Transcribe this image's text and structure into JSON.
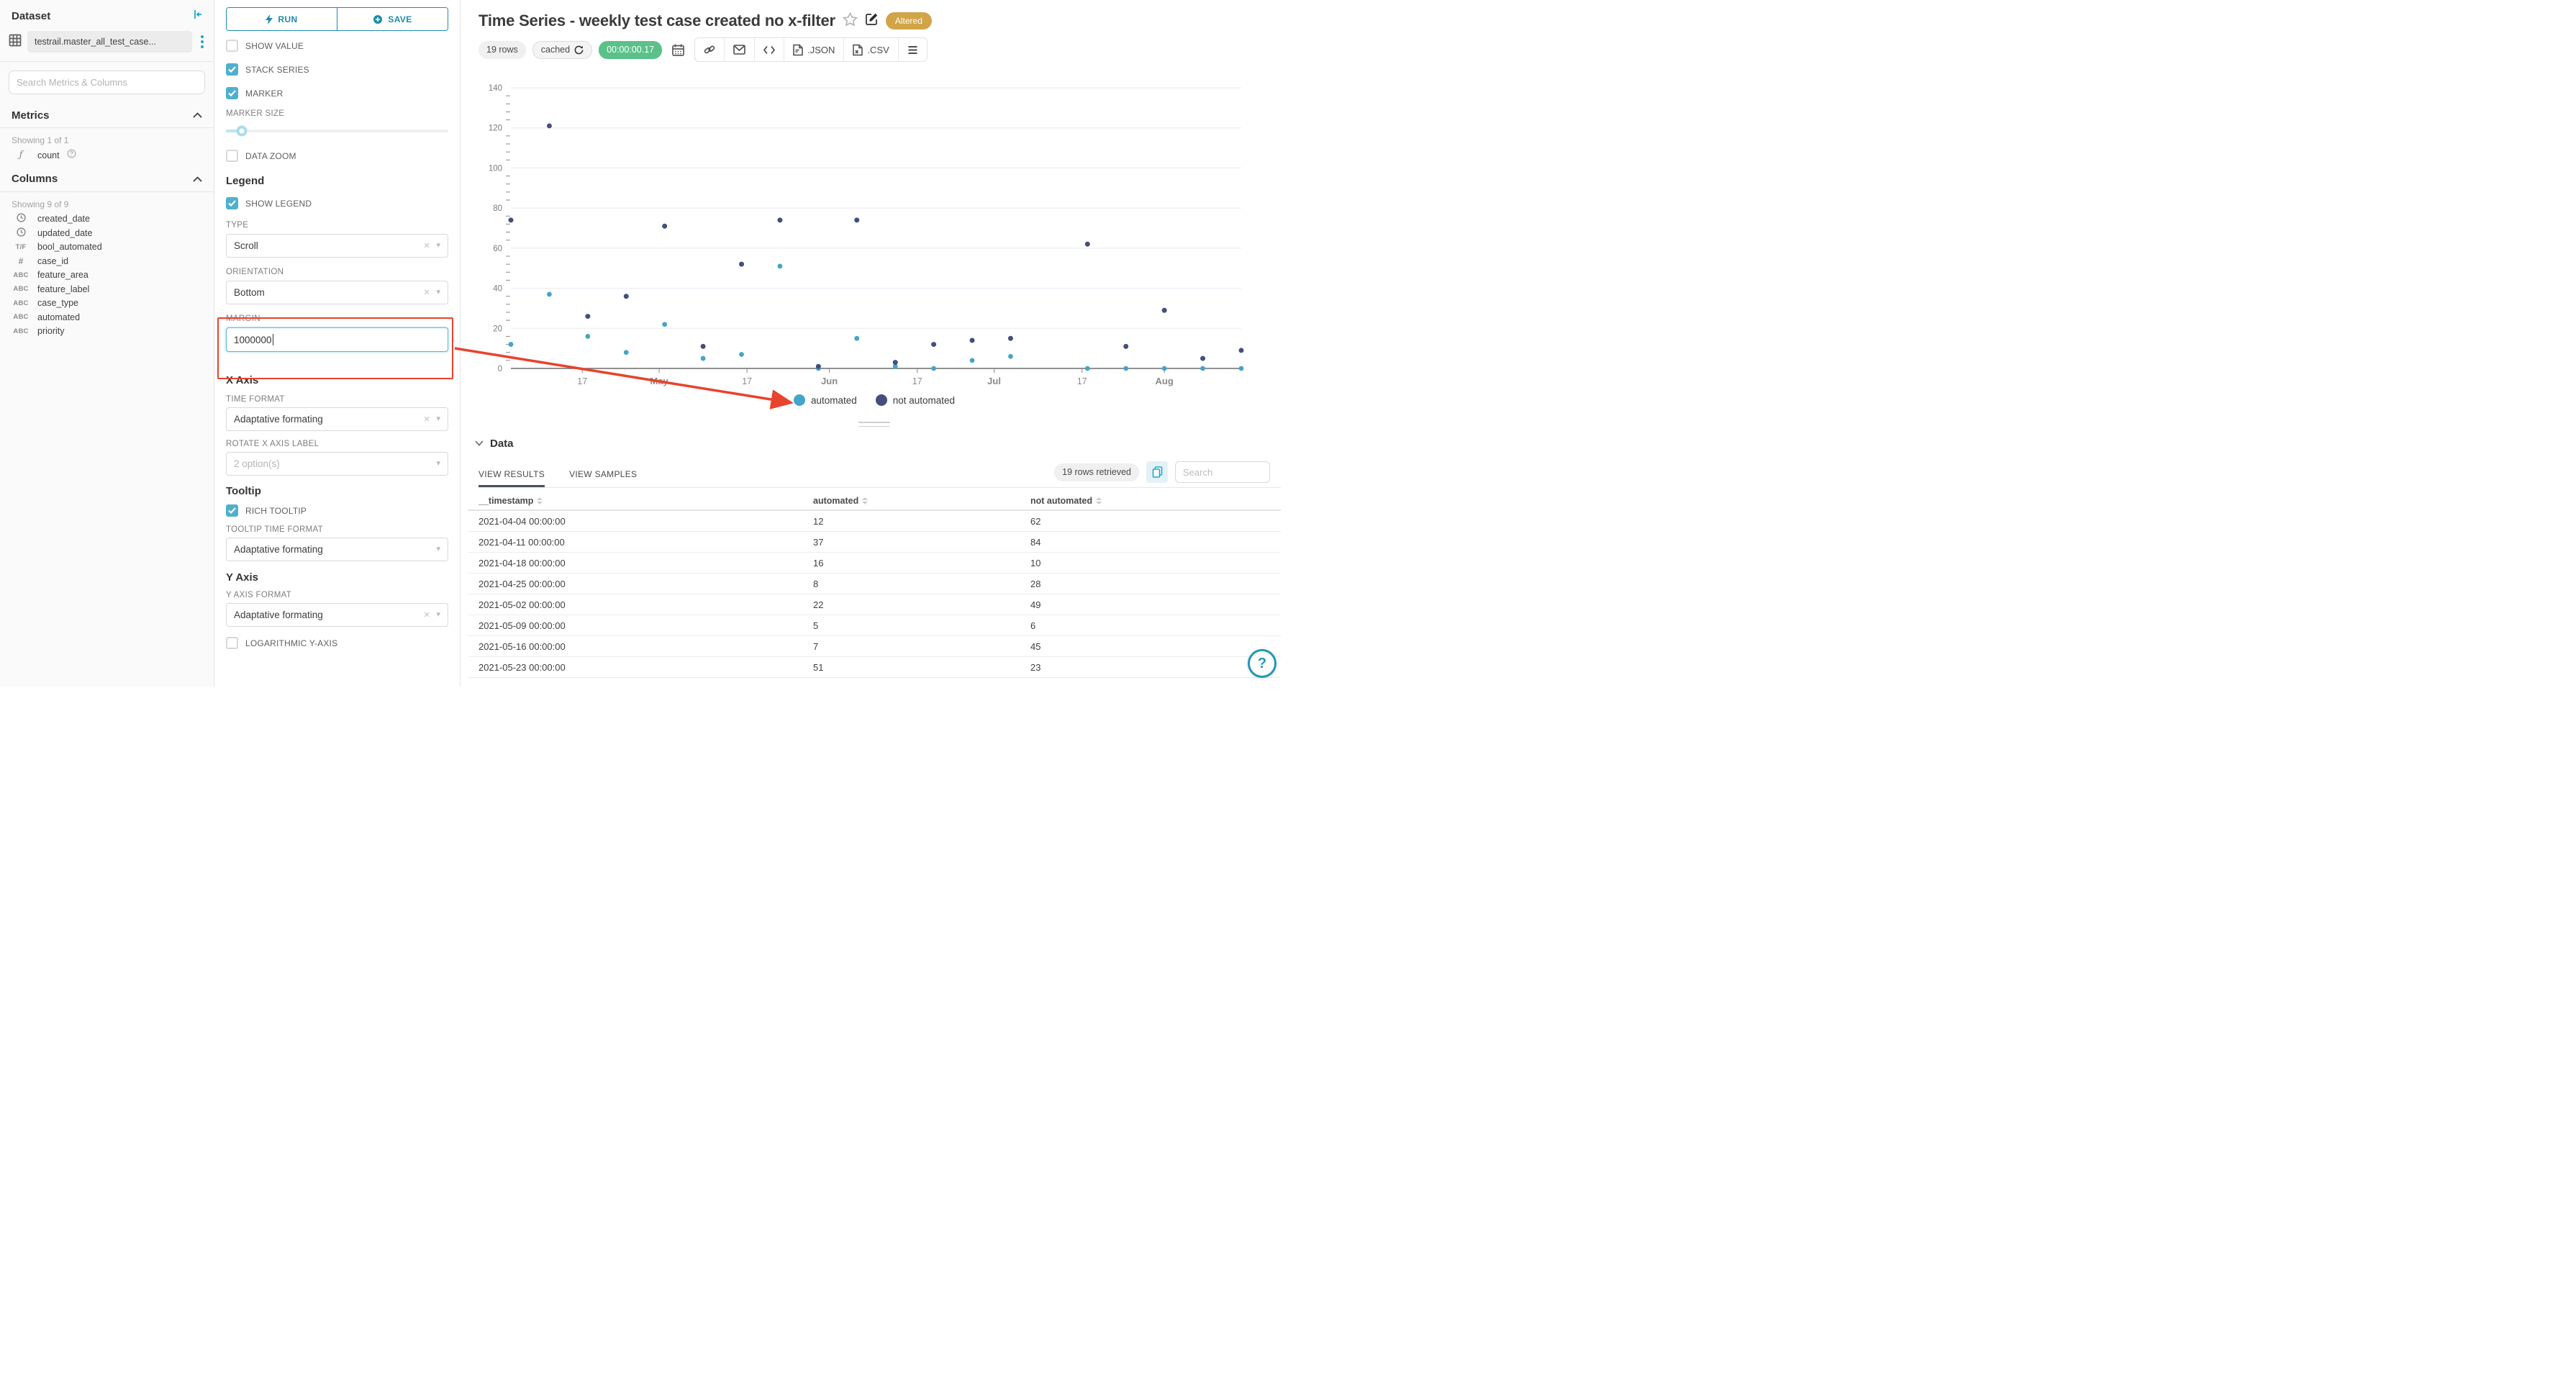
{
  "dataset_panel": {
    "title": "Dataset",
    "dataset_name": "testrail.master_all_test_case...",
    "search_placeholder": "Search Metrics & Columns",
    "metrics": {
      "header": "Metrics",
      "showing": "Showing 1 of 1",
      "items": [
        {
          "type": "function",
          "name": "count"
        }
      ]
    },
    "columns": {
      "header": "Columns",
      "showing": "Showing 9 of 9",
      "items": [
        {
          "type": "time",
          "name": "created_date"
        },
        {
          "type": "time",
          "name": "updated_date"
        },
        {
          "type": "bool",
          "name": "bool_automated"
        },
        {
          "type": "num",
          "name": "case_id"
        },
        {
          "type": "str",
          "name": "feature_area"
        },
        {
          "type": "str",
          "name": "feature_label"
        },
        {
          "type": "str",
          "name": "case_type"
        },
        {
          "type": "str",
          "name": "automated"
        },
        {
          "type": "str",
          "name": "priority"
        }
      ]
    }
  },
  "controls": {
    "run_label": "RUN",
    "save_label": "SAVE",
    "show_value": "SHOW VALUE",
    "stack_series": "STACK SERIES",
    "marker": "MARKER",
    "marker_size": "MARKER SIZE",
    "data_zoom": "DATA ZOOM",
    "legend_header": "Legend",
    "show_legend": "SHOW LEGEND",
    "type_label": "TYPE",
    "type_value": "Scroll",
    "orientation_label": "ORIENTATION",
    "orientation_value": "Bottom",
    "margin_label": "MARGIN",
    "margin_value": "1000000",
    "xaxis_header": "X Axis",
    "time_format_label": "TIME FORMAT",
    "time_format_value": "Adaptative formating",
    "rotate_label": "ROTATE X AXIS LABEL",
    "rotate_value": "2 option(s)",
    "tooltip_header": "Tooltip",
    "rich_tooltip": "RICH TOOLTIP",
    "tooltip_time_format_label": "TOOLTIP TIME FORMAT",
    "tooltip_time_format_value": "Adaptative formating",
    "yaxis_header": "Y Axis",
    "y_axis_format_label": "Y AXIS FORMAT",
    "y_axis_format_value": "Adaptative formating",
    "log_y": "LOGARITHMIC Y-AXIS"
  },
  "controls_state": {
    "show_value": false,
    "stack_series": true,
    "marker": true,
    "data_zoom": false,
    "show_legend": true,
    "rich_tooltip": true,
    "log_y": false
  },
  "header": {
    "title": "Time Series - weekly test case created no x-filter",
    "altered_badge": "Altered"
  },
  "toolbar": {
    "rows_pill": "19 rows",
    "cached_label": "cached",
    "duration": "00:00:00.17",
    "json_label": ".JSON",
    "csv_label": ".CSV"
  },
  "chart_data": {
    "type": "scatter",
    "stacked": true,
    "title": "",
    "xlabel": "",
    "ylabel": "",
    "ylim": [
      0,
      140
    ],
    "y_tick_step": 20,
    "y_minor_step": 4,
    "grid": true,
    "legend_position": "bottom",
    "x_domain": [
      "2021-04-04",
      "2021-08-15"
    ],
    "x": [
      "2021-04-04",
      "2021-04-11",
      "2021-04-18",
      "2021-04-25",
      "2021-05-02",
      "2021-05-09",
      "2021-05-16",
      "2021-05-23",
      "2021-05-30",
      "2021-06-06",
      "2021-06-13",
      "2021-06-20",
      "2021-06-27",
      "2021-07-04",
      "2021-07-18",
      "2021-07-25",
      "2021-08-01",
      "2021-08-08",
      "2021-08-15"
    ],
    "x_ticks": [
      {
        "date": "2021-04-17",
        "label": "17",
        "bold": false
      },
      {
        "date": "2021-05-01",
        "label": "May",
        "bold": true
      },
      {
        "date": "2021-05-17",
        "label": "17",
        "bold": false
      },
      {
        "date": "2021-06-01",
        "label": "Jun",
        "bold": true
      },
      {
        "date": "2021-06-17",
        "label": "17",
        "bold": false
      },
      {
        "date": "2021-07-01",
        "label": "Jul",
        "bold": true
      },
      {
        "date": "2021-07-17",
        "label": "17",
        "bold": false
      },
      {
        "date": "2021-08-01",
        "label": "Aug",
        "bold": true
      }
    ],
    "series": [
      {
        "name": "automated",
        "color": "#44a5c8",
        "values": [
          12,
          37,
          16,
          8,
          22,
          5,
          7,
          51,
          0,
          15,
          1,
          0,
          4,
          6,
          0,
          0,
          0,
          0,
          0
        ]
      },
      {
        "name": "not automated",
        "color": "#454e7c",
        "values": [
          62,
          84,
          10,
          28,
          49,
          6,
          45,
          23,
          1,
          59,
          2,
          12,
          10,
          9,
          62,
          11,
          29,
          5,
          9
        ]
      }
    ]
  },
  "data_panel": {
    "header": "Data",
    "tabs": [
      {
        "label": "VIEW RESULTS",
        "active": true
      },
      {
        "label": "VIEW SAMPLES",
        "active": false
      }
    ],
    "rows_retrieved": "19 rows retrieved",
    "search_placeholder": "Search",
    "table": {
      "columns": [
        "__timestamp",
        "automated",
        "not automated"
      ],
      "rows": [
        [
          "2021-04-04 00:00:00",
          "12",
          "62"
        ],
        [
          "2021-04-11 00:00:00",
          "37",
          "84"
        ],
        [
          "2021-04-18 00:00:00",
          "16",
          "10"
        ],
        [
          "2021-04-25 00:00:00",
          "8",
          "28"
        ],
        [
          "2021-05-02 00:00:00",
          "22",
          "49"
        ],
        [
          "2021-05-09 00:00:00",
          "5",
          "6"
        ],
        [
          "2021-05-16 00:00:00",
          "7",
          "45"
        ],
        [
          "2021-05-23 00:00:00",
          "51",
          "23"
        ]
      ]
    }
  },
  "colors": {
    "accent": "#20a7c9",
    "checkbox": "#4fb0ce",
    "badge_altered": "#d2a449",
    "timer_green": "#5ac189",
    "annotation_red": "#e8432d",
    "tab_indicator": "#485063",
    "series_automated": "#44a5c8",
    "series_not_automated": "#454e7c"
  }
}
